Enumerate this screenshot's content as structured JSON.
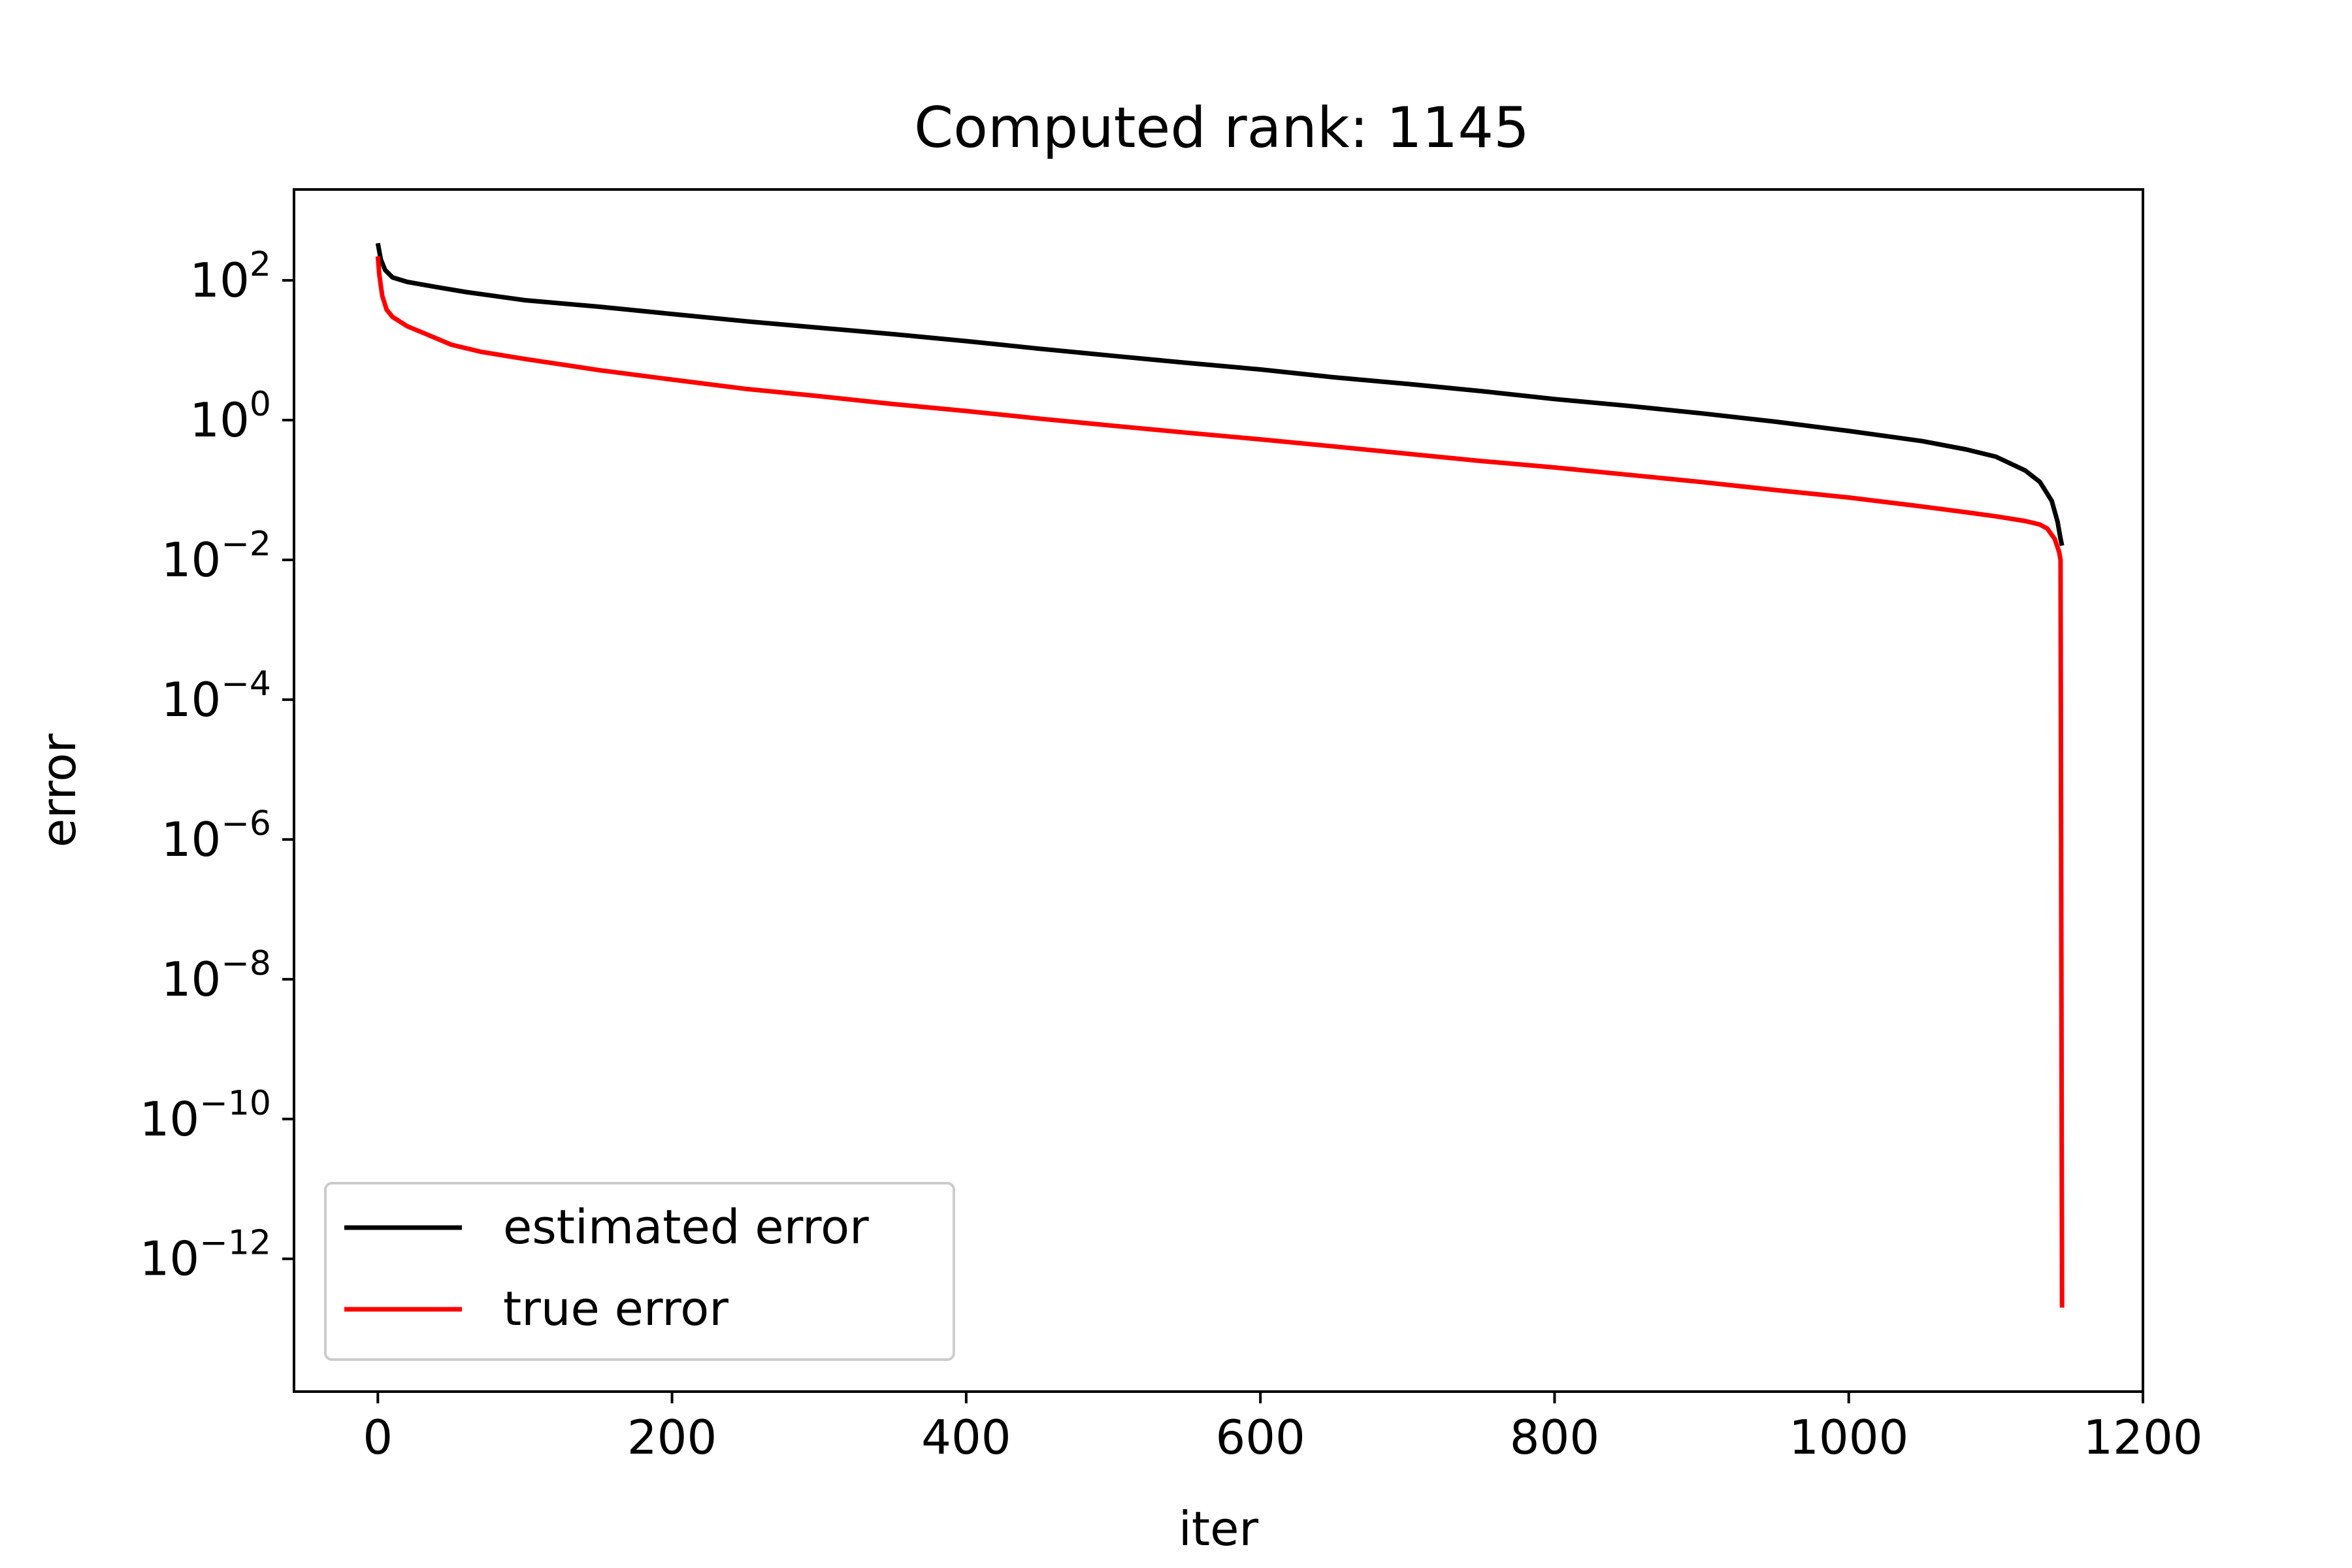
{
  "chart_data": {
    "type": "line",
    "title": "Computed rank: 1145",
    "xlabel": "iter",
    "ylabel": "error",
    "xlim": [
      -57,
      1200
    ],
    "ylim": [
      -13.9,
      3.3
    ],
    "yscale": "log",
    "xticks": [
      0,
      200,
      400,
      600,
      800,
      1000,
      1200
    ],
    "xtick_labels": [
      "0",
      "200",
      "400",
      "600",
      "800",
      "1000",
      "1200"
    ],
    "yticks": [
      2,
      0,
      -2,
      -4,
      -6,
      -8,
      -10,
      -12
    ],
    "ytick_labels": [
      {
        "base": "10",
        "exp": "2"
      },
      {
        "base": "10",
        "exp": "0"
      },
      {
        "base": "10",
        "exp": "−2"
      },
      {
        "base": "10",
        "exp": "−4"
      },
      {
        "base": "10",
        "exp": "−6"
      },
      {
        "base": "10",
        "exp": "−8"
      },
      {
        "base": "10",
        "exp": "−10"
      },
      {
        "base": "10",
        "exp": "−12"
      }
    ],
    "grid": false,
    "legend_position": "lower-left",
    "series": [
      {
        "name": "estimated error",
        "color": "#000000",
        "x": [
          0,
          2,
          5,
          10,
          20,
          40,
          60,
          100,
          150,
          200,
          250,
          300,
          350,
          400,
          450,
          500,
          550,
          600,
          650,
          700,
          750,
          800,
          850,
          900,
          950,
          1000,
          1050,
          1080,
          1100,
          1120,
          1130,
          1138,
          1142,
          1144,
          1145
        ],
        "y": [
          340,
          200,
          140,
          110,
          95,
          80,
          68,
          52,
          42,
          33,
          26,
          21,
          17,
          13.5,
          10.5,
          8.3,
          6.6,
          5.3,
          4.1,
          3.3,
          2.6,
          2.0,
          1.6,
          1.25,
          0.95,
          0.7,
          0.5,
          0.38,
          0.3,
          0.19,
          0.13,
          0.07,
          0.035,
          0.02,
          0.016
        ]
      },
      {
        "name": "true error",
        "color": "#ff0000",
        "x": [
          0,
          1,
          3,
          6,
          10,
          20,
          30,
          50,
          70,
          100,
          150,
          200,
          250,
          300,
          350,
          400,
          450,
          500,
          550,
          600,
          650,
          700,
          750,
          800,
          850,
          900,
          950,
          1000,
          1050,
          1080,
          1100,
          1120,
          1130,
          1135,
          1140,
          1143,
          1144,
          1144.5,
          1145
        ],
        "y": [
          220,
          120,
          60,
          38,
          30,
          22,
          18,
          12,
          9.5,
          7.5,
          5.2,
          3.8,
          2.8,
          2.2,
          1.7,
          1.35,
          1.05,
          0.83,
          0.66,
          0.53,
          0.42,
          0.33,
          0.26,
          0.21,
          0.165,
          0.13,
          0.1,
          0.078,
          0.058,
          0.048,
          0.042,
          0.036,
          0.032,
          0.028,
          0.02,
          0.013,
          0.01,
          1e-07,
          2e-13
        ]
      }
    ]
  }
}
